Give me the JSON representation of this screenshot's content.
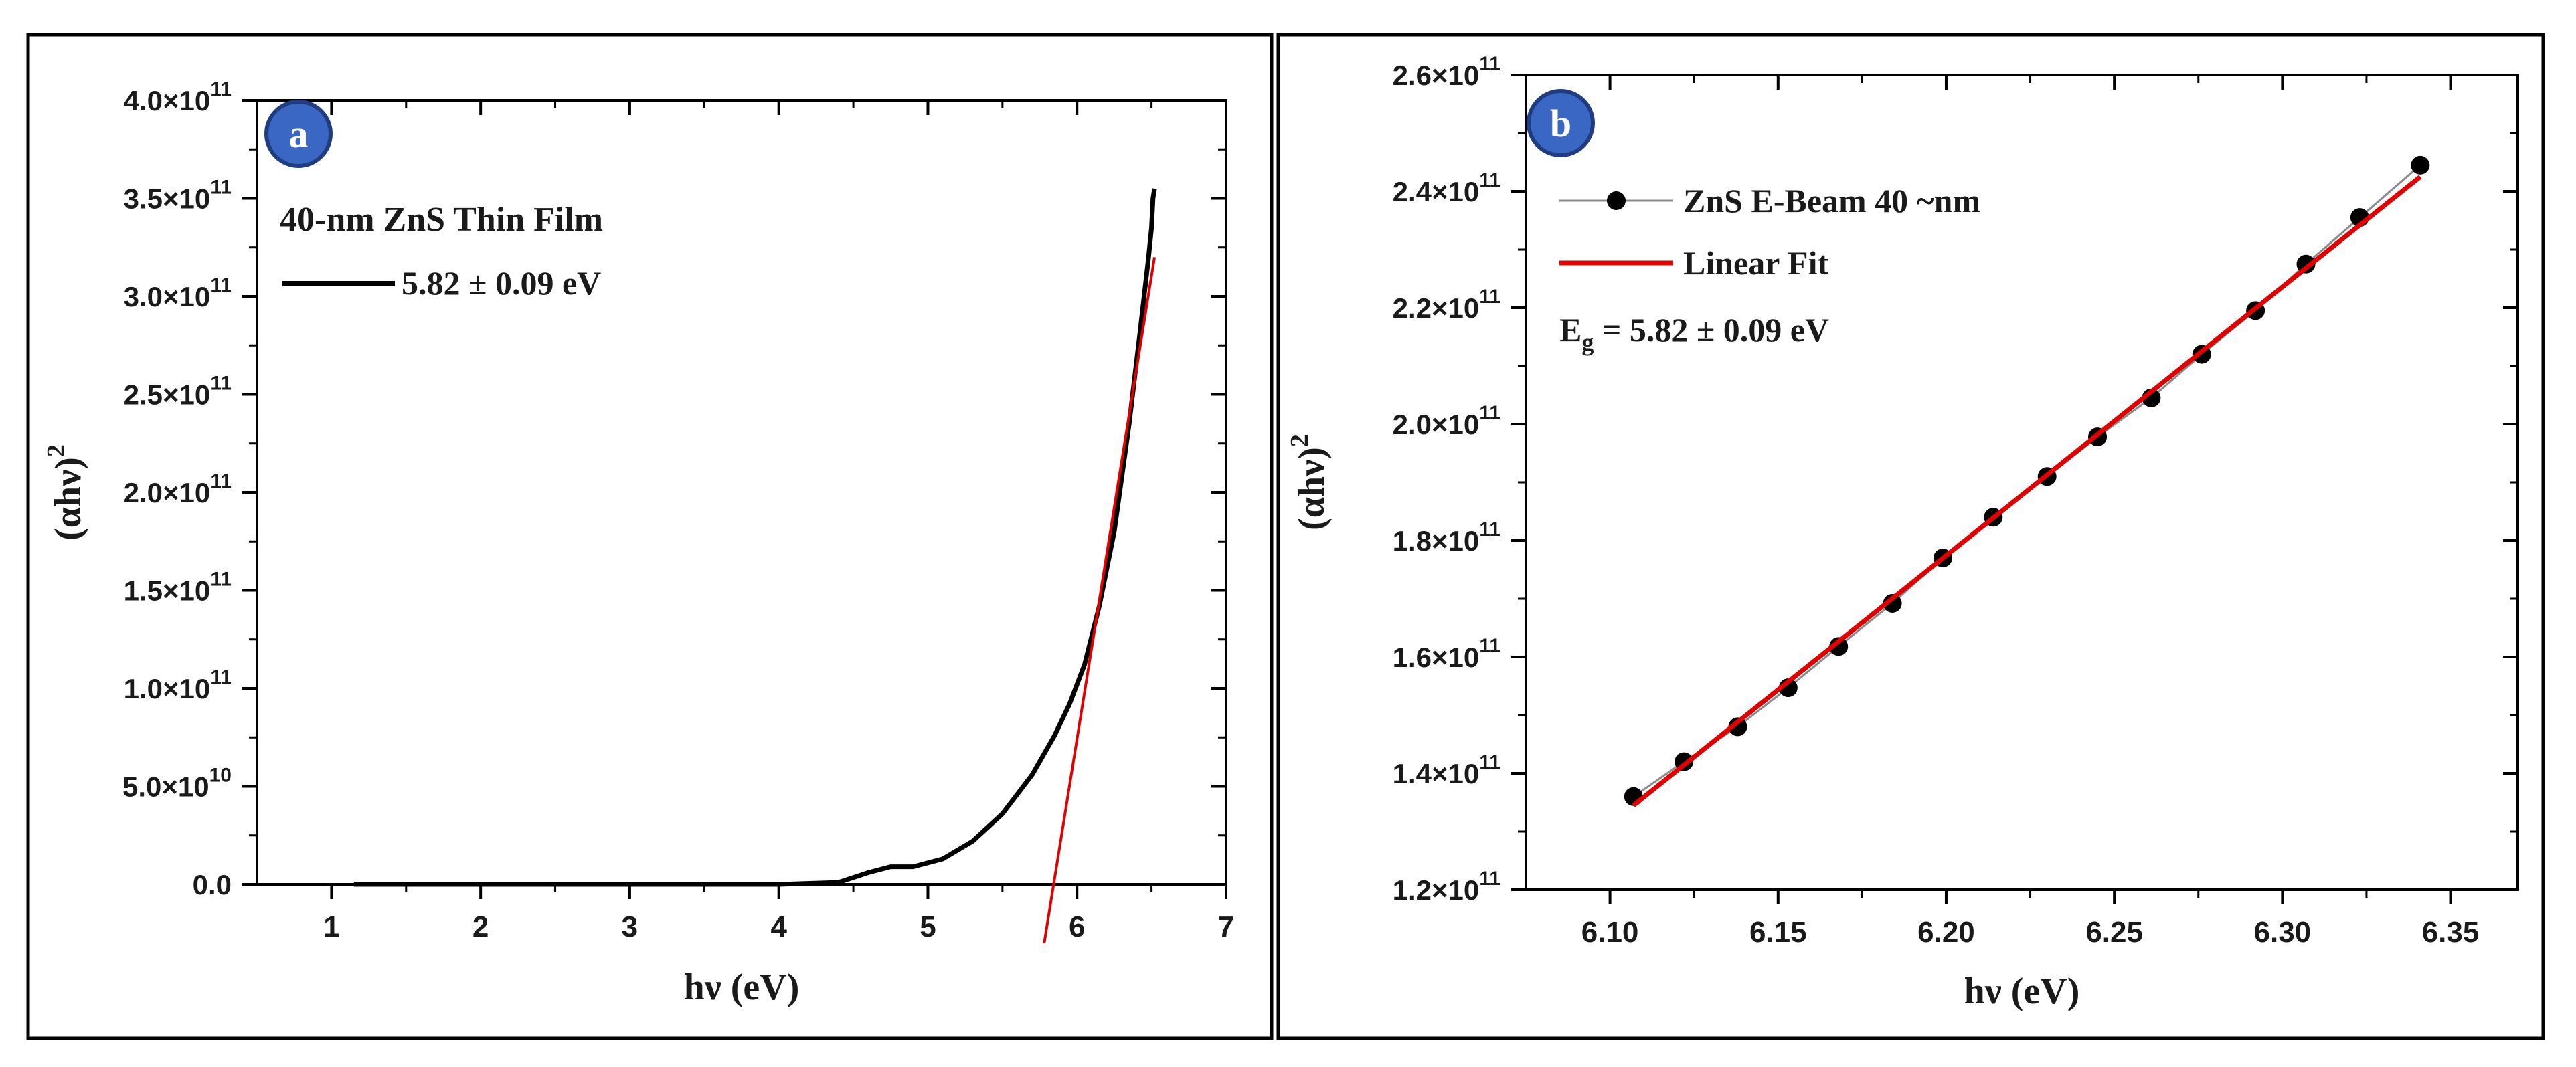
{
  "colors": {
    "data_line": "#000000",
    "fit_line": "#e00000",
    "badge_fill": "#3a66c4",
    "badge_stroke": "#1f3d80",
    "frame": "#000000"
  },
  "chart_data": [
    {
      "panel": "a",
      "type": "line",
      "badge": "a",
      "xlabel_prefix": "hν",
      "xlabel_unit": "(eV)",
      "ylabel_base": "(αhν)",
      "ylabel_sup": "2",
      "xlim": [
        0.5,
        7
      ],
      "ylim": [
        0,
        400000000000.0
      ],
      "x_ticks": [
        "1",
        "2",
        "3",
        "4",
        "5",
        "6",
        "7"
      ],
      "x_tick_values": [
        1,
        2,
        3,
        4,
        5,
        6,
        7
      ],
      "y_ticks": [
        {
          "v": 0,
          "m": "0.0",
          "e": ""
        },
        {
          "v": 50000000000.0,
          "m": "5.0×10",
          "e": "10"
        },
        {
          "v": 100000000000.0,
          "m": "1.0×10",
          "e": "11"
        },
        {
          "v": 150000000000.0,
          "m": "1.5×10",
          "e": "11"
        },
        {
          "v": 200000000000.0,
          "m": "2.0×10",
          "e": "11"
        },
        {
          "v": 250000000000.0,
          "m": "2.5×10",
          "e": "11"
        },
        {
          "v": 300000000000.0,
          "m": "3.0×10",
          "e": "11"
        },
        {
          "v": 350000000000.0,
          "m": "3.5×10",
          "e": "11"
        },
        {
          "v": 400000000000.0,
          "m": "4.0×10",
          "e": "11"
        }
      ],
      "legend_title": "40-nm ZnS Thin Film",
      "legend_entry": "5.82 ± 0.09 eV",
      "series": [
        {
          "name": "40-nm ZnS Thin Film",
          "x": [
            1.15,
            2.0,
            3.0,
            4.0,
            4.4,
            4.6,
            4.75,
            4.9,
            5.1,
            5.3,
            5.5,
            5.7,
            5.85,
            5.95,
            6.05,
            6.15,
            6.25,
            6.35,
            6.42,
            6.48,
            6.5,
            6.51,
            6.52
          ],
          "y": [
            0,
            0,
            0,
            0,
            1000000000.0,
            6000000000.0,
            9000000000.0,
            9000000000.0,
            13000000000.0,
            22000000000.0,
            36000000000.0,
            56000000000.0,
            76000000000.0,
            92000000000.0,
            112000000000.0,
            142000000000.0,
            180000000000.0,
            235000000000.0,
            280000000000.0,
            320000000000.0,
            335000000000.0,
            350000000000.0,
            355000000000.0
          ]
        }
      ],
      "fit": {
        "name": "Linear Fit",
        "x": [
          5.78,
          6.52
        ],
        "y": [
          -30000000000.0,
          320000000000.0
        ]
      }
    },
    {
      "panel": "b",
      "type": "scatter",
      "badge": "b",
      "xlabel_prefix": "hν",
      "xlabel_unit": "(eV)",
      "ylabel_base": "(αhν)",
      "ylabel_sup": "2",
      "xlim": [
        6.075,
        6.37
      ],
      "ylim": [
        120000000000.0,
        260000000000.0
      ],
      "x_ticks": [
        "6.10",
        "6.15",
        "6.20",
        "6.25",
        "6.30",
        "6.35"
      ],
      "x_tick_values": [
        6.1,
        6.15,
        6.2,
        6.25,
        6.3,
        6.35
      ],
      "y_ticks": [
        {
          "v": 120000000000.0,
          "m": "1.2×10",
          "e": "11"
        },
        {
          "v": 140000000000.0,
          "m": "1.4×10",
          "e": "11"
        },
        {
          "v": 160000000000.0,
          "m": "1.6×10",
          "e": "11"
        },
        {
          "v": 180000000000.0,
          "m": "1.8×10",
          "e": "11"
        },
        {
          "v": 200000000000.0,
          "m": "2.0×10",
          "e": "11"
        },
        {
          "v": 220000000000.0,
          "m": "2.2×10",
          "e": "11"
        },
        {
          "v": 240000000000.0,
          "m": "2.4×10",
          "e": "11"
        },
        {
          "v": 260000000000.0,
          "m": "2.6×10",
          "e": "11"
        }
      ],
      "legend_series": "ZnS E-Beam 40 ~nm",
      "legend_fit": "Linear Fit",
      "eg_symbol": "E",
      "eg_sub": "g",
      "eg_value": "= 5.82 ± 0.09  eV",
      "series": [
        {
          "name": "ZnS E-Beam 40 ~nm",
          "x": [
            6.107,
            6.122,
            6.138,
            6.153,
            6.168,
            6.184,
            6.199,
            6.214,
            6.23,
            6.245,
            6.261,
            6.276,
            6.292,
            6.307,
            6.323,
            6.341
          ],
          "y": [
            136000000000.0,
            142000000000.0,
            148000000000.0,
            154700000000.0,
            161800000000.0,
            169200000000.0,
            177000000000.0,
            184000000000.0,
            191000000000.0,
            197800000000.0,
            204500000000.0,
            212000000000.0,
            219500000000.0,
            227500000000.0,
            235500000000.0,
            244500000000.0
          ]
        }
      ],
      "fit": {
        "name": "Linear Fit",
        "x": [
          6.107,
          6.341
        ],
        "y": [
          134500000000.0,
          242500000000.0
        ]
      }
    }
  ]
}
